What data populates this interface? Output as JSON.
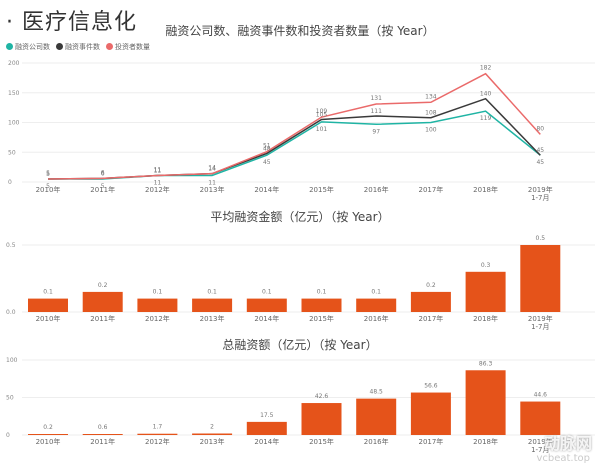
{
  "header": {
    "title": "· 医疗信息化"
  },
  "chart_data": [
    {
      "type": "line",
      "title": "融资公司数、融资事件数和投资者数量（按 Year）",
      "categories": [
        "2010年",
        "2011年",
        "2012年",
        "2013年",
        "2014年",
        "2015年",
        "2016年",
        "2017年",
        "2018年",
        "2019年 1-7月"
      ],
      "ylim": [
        0,
        200
      ],
      "yticks": [
        0,
        50,
        100,
        150,
        200
      ],
      "legend_position": "top-left",
      "grid": true,
      "series": [
        {
          "name": "融资公司数",
          "color": "#1fb4a4",
          "values": [
            5,
            5,
            11,
            11,
            45,
            101,
            97,
            100,
            119,
            45
          ]
        },
        {
          "name": "融资事件数",
          "color": "#3a3a3a",
          "values": [
            5,
            6,
            11,
            14,
            48,
            105,
            111,
            108,
            140,
            45
          ]
        },
        {
          "name": "投资者数量",
          "color": "#ea6a6a",
          "values": [
            5,
            6,
            11,
            14,
            51,
            109,
            131,
            134,
            182,
            80
          ]
        }
      ]
    },
    {
      "type": "bar",
      "title": "平均融资金额（亿元）（按 Year）",
      "categories": [
        "2010年",
        "2011年",
        "2012年",
        "2013年",
        "2014年",
        "2015年",
        "2016年",
        "2017年",
        "2018年",
        "2019年 1-7月"
      ],
      "values": [
        0.1,
        0.2,
        0.1,
        0.1,
        0.1,
        0.1,
        0.1,
        0.2,
        0.3,
        0.5
      ],
      "bar_heights": [
        0.1,
        0.15,
        0.1,
        0.1,
        0.1,
        0.1,
        0.1,
        0.15,
        0.3,
        0.5
      ],
      "color": "#e5531a",
      "ylim": [
        0,
        0.5
      ],
      "yticks": [
        "0.0",
        "0.5"
      ],
      "grid": true
    },
    {
      "type": "bar",
      "title": "总融资额（亿元）（按 Year）",
      "categories": [
        "2010年",
        "2011年",
        "2012年",
        "2013年",
        "2014年",
        "2015年",
        "2016年",
        "2017年",
        "2018年",
        "2019年 1-7月"
      ],
      "values": [
        0.2,
        0.6,
        1.7,
        2.0,
        17.5,
        42.6,
        48.5,
        56.6,
        86.3,
        44.6
      ],
      "color": "#e5531a",
      "ylim": [
        0,
        100
      ],
      "yticks": [
        0,
        50,
        100
      ],
      "grid": true
    }
  ],
  "watermark": {
    "text": "动脉网",
    "url_text": "vcbeat.top"
  }
}
